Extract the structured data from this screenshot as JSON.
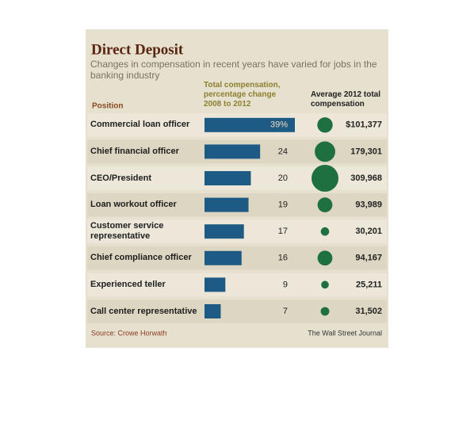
{
  "chart_data": {
    "type": "bar",
    "title": "Direct Deposit",
    "subtitle": "Changes in compensation in recent years have varied for jobs in the banking industry",
    "category_header": "Position",
    "categories": [
      "Commercial loan officer",
      "Chief financial officer",
      "CEO/President",
      "Loan workout officer",
      "Customer service representative",
      "Chief compliance officer",
      "Experienced teller",
      "Call center representative"
    ],
    "series": [
      {
        "name": "Total compensation, percentage change 2008 to 2012",
        "type": "bar",
        "color": "#1d5b84",
        "values": [
          39,
          24,
          20,
          19,
          17,
          16,
          9,
          7
        ],
        "value_labels": [
          "39%",
          "24",
          "20",
          "19",
          "17",
          "16",
          "9",
          "7"
        ]
      },
      {
        "name": "Average 2012 total compensation",
        "type": "bubble",
        "color": "#1f7040",
        "values": [
          101377,
          179301,
          309968,
          93989,
          30201,
          94167,
          25211,
          31502
        ],
        "value_labels": [
          "$101,377",
          "179,301",
          "309,968",
          "93,989",
          "30,201",
          "94,167",
          "25,211",
          "31,502"
        ]
      }
    ],
    "source": "Source: Crowe Horwath",
    "credit": "The Wall Street Journal"
  }
}
